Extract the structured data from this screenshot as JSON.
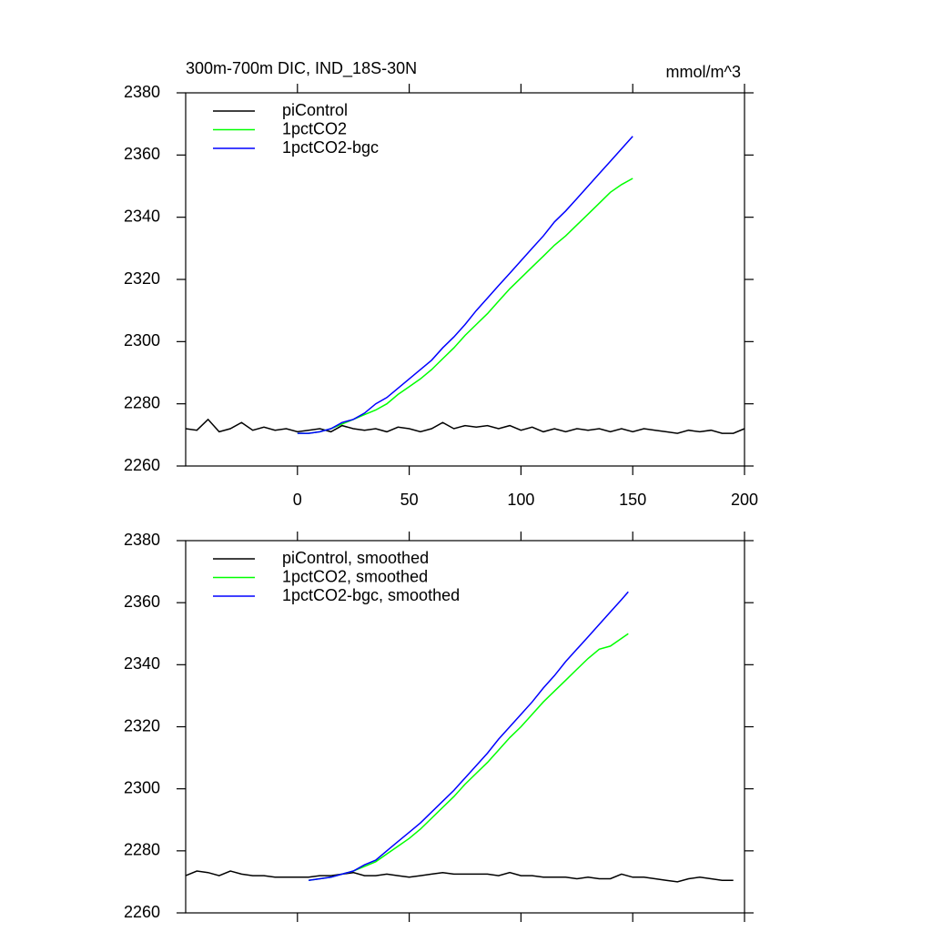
{
  "chart_data": [
    {
      "type": "line",
      "title": "300m-700m DIC, IND_18S-30N",
      "units": "mmol/m^3",
      "xlim": [
        -50,
        200
      ],
      "xticks": [
        0,
        50,
        100,
        150,
        200
      ],
      "ylim": [
        2260,
        2380
      ],
      "yticks": [
        2260,
        2280,
        2300,
        2320,
        2340,
        2360,
        2380
      ],
      "legend": "upper left",
      "series": [
        {
          "name": "piControl",
          "color": "#000000",
          "x": [
            -50,
            -45,
            -40,
            -35,
            -30,
            -25,
            -20,
            -15,
            -10,
            -5,
            0,
            5,
            10,
            15,
            20,
            25,
            30,
            35,
            40,
            45,
            50,
            55,
            60,
            65,
            70,
            75,
            80,
            85,
            90,
            95,
            100,
            105,
            110,
            115,
            120,
            125,
            130,
            135,
            140,
            145,
            150,
            155,
            160,
            165,
            170,
            175,
            180,
            185,
            190,
            195,
            200
          ],
          "values": [
            2272,
            2271.5,
            2275,
            2271,
            2272,
            2274,
            2271.5,
            2272.5,
            2271.5,
            2272,
            2271,
            2271.5,
            2272,
            2271,
            2273,
            2272,
            2271.5,
            2272,
            2271,
            2272.5,
            2272,
            2271,
            2272,
            2274,
            2272,
            2273,
            2272.5,
            2273,
            2272,
            2273,
            2271.5,
            2272.5,
            2271,
            2272,
            2271,
            2272,
            2271.5,
            2272,
            2271,
            2272,
            2271,
            2272,
            2271.5,
            2271,
            2270.5,
            2271.5,
            2271,
            2271.5,
            2270.5,
            2270.5,
            2272
          ]
        },
        {
          "name": "1pctCO2",
          "color": "#00ff00",
          "x": [
            0,
            5,
            10,
            15,
            20,
            25,
            30,
            35,
            40,
            45,
            50,
            55,
            60,
            65,
            70,
            75,
            80,
            85,
            90,
            95,
            100,
            105,
            110,
            115,
            120,
            125,
            130,
            135,
            140,
            145,
            150
          ],
          "values": [
            2270.5,
            2270.5,
            2271,
            2272,
            2273.5,
            2275,
            2276.5,
            2278,
            2280,
            2283,
            2285.5,
            2288,
            2291,
            2294.5,
            2298,
            2302,
            2305.5,
            2309,
            2313,
            2317,
            2320.5,
            2324,
            2327.5,
            2331,
            2334,
            2337.5,
            2341,
            2344.5,
            2348,
            2350.5,
            2352.5
          ]
        },
        {
          "name": "1pctCO2-bgc",
          "color": "#0000ff",
          "x": [
            0,
            5,
            10,
            15,
            20,
            25,
            30,
            35,
            40,
            45,
            50,
            55,
            60,
            65,
            70,
            75,
            80,
            85,
            90,
            95,
            100,
            105,
            110,
            115,
            120,
            125,
            130,
            135,
            140,
            145,
            150
          ],
          "values": [
            2270.5,
            2270.5,
            2271,
            2272,
            2274,
            2275,
            2277,
            2280,
            2282,
            2285,
            2288,
            2291,
            2294,
            2298,
            2301.5,
            2305.5,
            2310,
            2314,
            2318,
            2322,
            2326,
            2330,
            2334,
            2338.5,
            2342,
            2346,
            2350,
            2354,
            2358,
            2362,
            2366
          ]
        }
      ]
    },
    {
      "type": "line",
      "xlim": [
        -50,
        200
      ],
      "ylim": [
        2260,
        2380
      ],
      "yticks": [
        2260,
        2280,
        2300,
        2320,
        2340,
        2360,
        2380
      ],
      "legend": "upper left",
      "series": [
        {
          "name": "piControl, smoothed",
          "color": "#000000",
          "x": [
            -50,
            -45,
            -40,
            -35,
            -30,
            -25,
            -20,
            -15,
            -10,
            -5,
            0,
            5,
            10,
            15,
            20,
            25,
            30,
            35,
            40,
            45,
            50,
            55,
            60,
            65,
            70,
            75,
            80,
            85,
            90,
            95,
            100,
            105,
            110,
            115,
            120,
            125,
            130,
            135,
            140,
            145,
            150,
            155,
            160,
            165,
            170,
            175,
            180,
            185,
            190,
            195
          ],
          "values": [
            2272,
            2273.5,
            2273,
            2272,
            2273.5,
            2272.5,
            2272,
            2272,
            2271.5,
            2271.5,
            2271.5,
            2271.5,
            2272,
            2272,
            2272.5,
            2273,
            2272,
            2272,
            2272.5,
            2272,
            2271.5,
            2272,
            2272.5,
            2273,
            2272.5,
            2272.5,
            2272.5,
            2272.5,
            2272,
            2273,
            2272,
            2272,
            2271.5,
            2271.5,
            2271.5,
            2271,
            2271.5,
            2271,
            2271,
            2272.5,
            2271.5,
            2271.5,
            2271,
            2270.5,
            2270,
            2271,
            2271.5,
            2271,
            2270.5,
            2270.5
          ]
        },
        {
          "name": "1pctCO2, smoothed",
          "color": "#00ff00",
          "x": [
            5,
            10,
            15,
            20,
            25,
            30,
            35,
            40,
            45,
            50,
            55,
            60,
            65,
            70,
            75,
            80,
            85,
            90,
            95,
            100,
            105,
            110,
            115,
            120,
            125,
            130,
            135,
            140,
            145,
            148
          ],
          "values": [
            2270.5,
            2271,
            2271.5,
            2272.5,
            2273.5,
            2275,
            2276.5,
            2279,
            2281.5,
            2284,
            2287,
            2290.5,
            2294,
            2297.5,
            2301.5,
            2305,
            2308.5,
            2312.5,
            2316.5,
            2320,
            2324,
            2328,
            2331.5,
            2335,
            2338.5,
            2342,
            2345,
            2346,
            2348.5,
            2350
          ]
        },
        {
          "name": "1pctCO2-bgc, smoothed",
          "color": "#0000ff",
          "x": [
            5,
            10,
            15,
            20,
            25,
            30,
            35,
            40,
            45,
            50,
            55,
            60,
            65,
            70,
            75,
            80,
            85,
            90,
            95,
            100,
            105,
            110,
            115,
            120,
            125,
            130,
            135,
            140,
            145,
            148
          ],
          "values": [
            2270.5,
            2271,
            2271.5,
            2272.5,
            2273.5,
            2275.5,
            2277,
            2280,
            2283,
            2286,
            2289,
            2292.5,
            2296,
            2299.5,
            2303.5,
            2307.5,
            2311.5,
            2316,
            2320,
            2324,
            2328,
            2332.5,
            2336.5,
            2341,
            2345,
            2349,
            2353,
            2357,
            2361,
            2363.5
          ]
        }
      ]
    }
  ]
}
